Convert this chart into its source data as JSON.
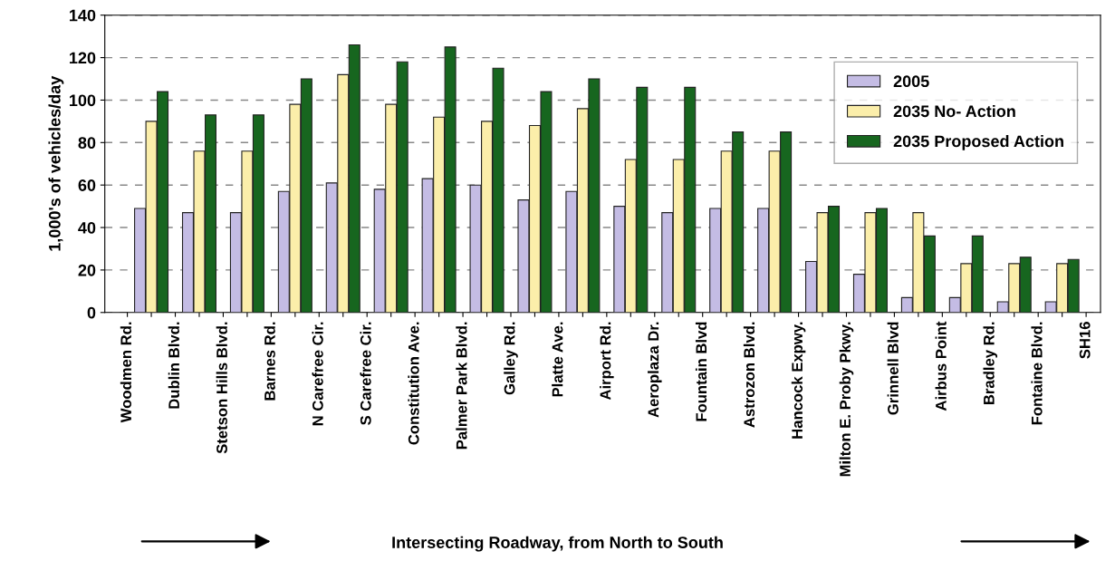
{
  "chart_data": {
    "type": "bar",
    "ylabel": "1,000's of vehicles/day",
    "xlabel": "Intersecting Roadway, from North to South",
    "categories": [
      "Woodmen Rd.",
      null,
      "Dublin Blvd.",
      null,
      "Stetson Hills Blvd.",
      null,
      "Barnes Rd.",
      null,
      "N Carefree Cir.",
      null,
      "S Carefree Cir.",
      null,
      "Constitution Ave.",
      null,
      "Palmer Park Blvd.",
      null,
      "Galley Rd.",
      null,
      "Platte Ave.",
      null,
      "Airport Rd.",
      null,
      "Aeroplaza Dr.",
      null,
      "Fountain Blvd",
      null,
      "Astrozon Blvd.",
      null,
      "Hancock Expwy.",
      null,
      "Milton E. Proby Pkwy.",
      null,
      "Grinnell Blvd",
      null,
      "Airbus Point",
      null,
      "Bradley Rd.",
      null,
      "Fontaine Blvd.",
      null,
      "SH16"
    ],
    "ylim": [
      0,
      140
    ],
    "yticks": [
      0,
      20,
      40,
      60,
      80,
      100,
      120,
      140
    ],
    "grid": "y",
    "legend": "top right",
    "series": [
      {
        "name": "2005",
        "color": "#c4bce4",
        "values": [
          null,
          49,
          null,
          47,
          null,
          47,
          null,
          57,
          null,
          61,
          null,
          58,
          null,
          63,
          null,
          60,
          null,
          53,
          null,
          57,
          null,
          50,
          null,
          47,
          null,
          49,
          null,
          49,
          null,
          24,
          null,
          18,
          null,
          7,
          null,
          7,
          null,
          5,
          null,
          5,
          null
        ]
      },
      {
        "name": "2035 No- Action",
        "color": "#fbeeaa",
        "values": [
          null,
          90,
          null,
          76,
          null,
          76,
          null,
          98,
          null,
          112,
          null,
          98,
          null,
          92,
          null,
          90,
          null,
          88,
          null,
          96,
          null,
          72,
          null,
          72,
          null,
          76,
          null,
          76,
          null,
          47,
          null,
          47,
          null,
          47,
          null,
          23,
          null,
          23,
          null,
          23,
          null
        ]
      },
      {
        "name": "2035 Proposed Action",
        "color": "#17661f",
        "values": [
          null,
          104,
          null,
          93,
          null,
          93,
          null,
          110,
          null,
          126,
          null,
          118,
          null,
          125,
          null,
          115,
          null,
          104,
          null,
          110,
          null,
          106,
          null,
          106,
          null,
          85,
          null,
          85,
          null,
          50,
          null,
          49,
          null,
          36,
          null,
          36,
          null,
          26,
          null,
          25,
          null
        ]
      }
    ]
  }
}
